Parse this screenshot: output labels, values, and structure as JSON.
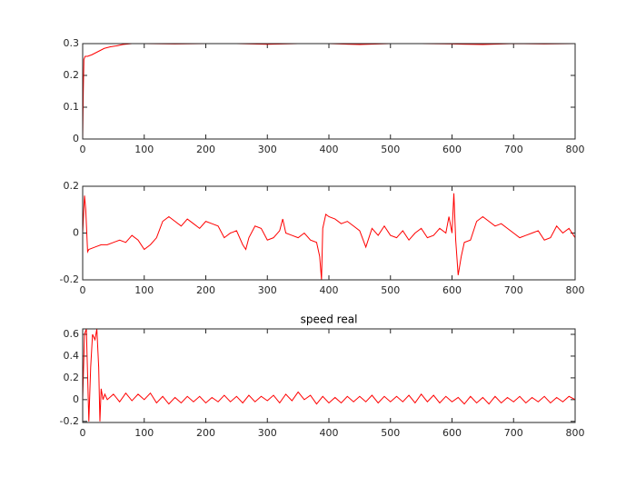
{
  "chart_data": [
    {
      "type": "line",
      "color": "#ff0000",
      "x": [
        0,
        1,
        2,
        4,
        8,
        15,
        25,
        35,
        45,
        55,
        65,
        80,
        100,
        150,
        200,
        250,
        300,
        350,
        400,
        450,
        500,
        550,
        600,
        650,
        700,
        750,
        800
      ],
      "values": [
        0,
        0.15,
        0.25,
        0.26,
        0.26,
        0.265,
        0.275,
        0.285,
        0.29,
        0.293,
        0.297,
        0.3,
        0.3,
        0.299,
        0.3,
        0.3,
        0.298,
        0.3,
        0.3,
        0.297,
        0.3,
        0.3,
        0.299,
        0.297,
        0.3,
        0.299,
        0.3
      ],
      "xlim": [
        0,
        800
      ],
      "xticks": [
        0,
        100,
        200,
        300,
        400,
        500,
        600,
        700,
        800
      ],
      "ylim": [
        0,
        0.3
      ],
      "yticks": [
        0,
        0.1,
        0.2,
        0.3
      ]
    },
    {
      "type": "line",
      "color": "#ff0000",
      "x": [
        0,
        3,
        5,
        8,
        10,
        20,
        30,
        40,
        50,
        60,
        70,
        80,
        90,
        100,
        110,
        120,
        130,
        140,
        150,
        160,
        170,
        180,
        190,
        200,
        210,
        220,
        230,
        240,
        250,
        260,
        265,
        270,
        280,
        290,
        300,
        310,
        320,
        325,
        330,
        340,
        350,
        360,
        370,
        380,
        385,
        388,
        390,
        395,
        400,
        410,
        420,
        430,
        440,
        450,
        460,
        470,
        480,
        490,
        500,
        510,
        520,
        530,
        540,
        550,
        560,
        570,
        580,
        590,
        595,
        600,
        603,
        606,
        610,
        615,
        620,
        630,
        640,
        650,
        660,
        670,
        680,
        690,
        700,
        710,
        720,
        730,
        740,
        750,
        760,
        770,
        780,
        790,
        800
      ],
      "values": [
        0,
        0.16,
        0.1,
        -0.08,
        -0.07,
        -0.06,
        -0.05,
        -0.05,
        -0.04,
        -0.03,
        -0.04,
        -0.01,
        -0.03,
        -0.07,
        -0.05,
        -0.02,
        0.05,
        0.07,
        0.05,
        0.03,
        0.06,
        0.04,
        0.02,
        0.05,
        0.04,
        0.03,
        -0.02,
        0.0,
        0.01,
        -0.05,
        -0.07,
        -0.02,
        0.03,
        0.02,
        -0.03,
        -0.02,
        0.01,
        0.06,
        0.0,
        -0.01,
        -0.02,
        0.0,
        -0.03,
        -0.04,
        -0.1,
        -0.2,
        0.02,
        0.08,
        0.07,
        0.06,
        0.04,
        0.05,
        0.03,
        0.01,
        -0.06,
        0.02,
        -0.01,
        0.03,
        -0.01,
        -0.02,
        0.01,
        -0.03,
        0.0,
        0.02,
        -0.02,
        -0.01,
        0.02,
        0.0,
        0.07,
        0.0,
        0.17,
        -0.03,
        -0.18,
        -0.1,
        -0.04,
        -0.03,
        0.05,
        0.07,
        0.05,
        0.03,
        0.04,
        0.02,
        0.0,
        -0.02,
        -0.01,
        0.0,
        0.01,
        -0.03,
        -0.02,
        0.03,
        0.0,
        0.02,
        -0.02
      ],
      "xlim": [
        0,
        800
      ],
      "xticks": [
        0,
        100,
        200,
        300,
        400,
        500,
        600,
        700,
        800
      ],
      "ylim": [
        -0.2,
        0.2
      ],
      "yticks": [
        -0.2,
        0,
        0.2
      ]
    },
    {
      "type": "line",
      "title": "speed real",
      "color": "#ff0000",
      "x": [
        0,
        3,
        6,
        10,
        13,
        16,
        20,
        23,
        26,
        28,
        30,
        33,
        36,
        40,
        50,
        60,
        70,
        80,
        90,
        100,
        110,
        120,
        130,
        140,
        150,
        160,
        170,
        180,
        190,
        200,
        210,
        220,
        230,
        240,
        250,
        260,
        270,
        280,
        290,
        300,
        310,
        320,
        330,
        340,
        350,
        360,
        370,
        380,
        390,
        400,
        410,
        420,
        430,
        440,
        450,
        460,
        470,
        480,
        490,
        500,
        510,
        520,
        530,
        540,
        550,
        560,
        570,
        580,
        590,
        600,
        610,
        620,
        630,
        640,
        650,
        660,
        670,
        680,
        690,
        700,
        710,
        720,
        730,
        740,
        750,
        760,
        770,
        780,
        790,
        800
      ],
      "values": [
        0,
        0.6,
        0.65,
        -0.2,
        0.3,
        0.6,
        0.55,
        0.65,
        0.3,
        -0.2,
        0.1,
        0.0,
        0.05,
        0.0,
        0.05,
        -0.02,
        0.06,
        -0.01,
        0.05,
        0.0,
        0.06,
        -0.03,
        0.03,
        -0.04,
        0.02,
        -0.03,
        0.03,
        -0.02,
        0.03,
        -0.03,
        0.02,
        -0.02,
        0.04,
        -0.02,
        0.03,
        -0.03,
        0.04,
        -0.02,
        0.03,
        -0.01,
        0.04,
        -0.03,
        0.05,
        -0.01,
        0.07,
        0.0,
        0.04,
        -0.04,
        0.03,
        -0.03,
        0.02,
        -0.03,
        0.03,
        -0.02,
        0.03,
        -0.02,
        0.04,
        -0.03,
        0.03,
        -0.02,
        0.03,
        -0.02,
        0.04,
        -0.03,
        0.05,
        -0.02,
        0.04,
        -0.03,
        0.03,
        -0.02,
        0.02,
        -0.04,
        0.03,
        -0.03,
        0.02,
        -0.04,
        0.03,
        -0.03,
        0.02,
        -0.02,
        0.03,
        -0.03,
        0.02,
        -0.02,
        0.03,
        -0.03,
        0.02,
        -0.02,
        0.03,
        0.0
      ],
      "xlim": [
        0,
        800
      ],
      "xticks": [
        0,
        100,
        200,
        300,
        400,
        500,
        600,
        700,
        800
      ],
      "ylim": [
        -0.21,
        0.65
      ],
      "yticks": [
        -0.2,
        0,
        0.2,
        0.4,
        0.6
      ]
    }
  ]
}
